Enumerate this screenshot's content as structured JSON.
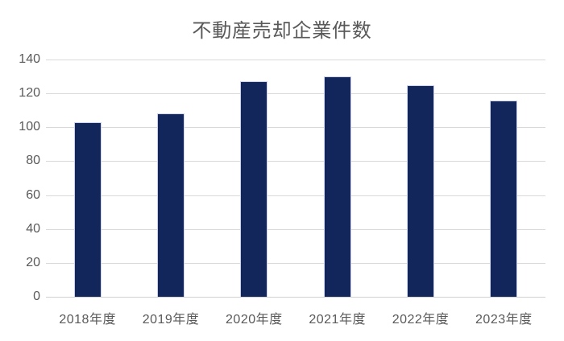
{
  "chart_data": {
    "type": "bar",
    "title": "不動産売却企業件数",
    "categories": [
      "2018年度",
      "2019年度",
      "2020年度",
      "2021年度",
      "2022年度",
      "2023年度"
    ],
    "values": [
      103,
      108,
      127,
      130,
      125,
      116
    ],
    "xlabel": "",
    "ylabel": "",
    "ylim": [
      0,
      140
    ],
    "yticks": [
      0,
      20,
      40,
      60,
      80,
      100,
      120,
      140
    ],
    "grid": true,
    "legend": "none",
    "colors": {
      "bar_fill": "#12265c",
      "bar_border": "#ccd3ea",
      "gridline": "#d9d9d9",
      "text": "#595959",
      "background": "#ffffff"
    }
  }
}
